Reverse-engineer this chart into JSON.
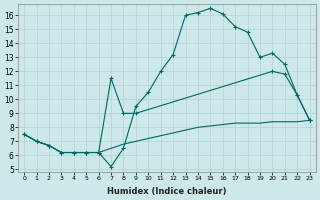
{
  "background_color": "#cce8e8",
  "grid_color": "#b5d0d0",
  "line_color": "#006666",
  "xlabel": "Humidex (Indice chaleur)",
  "xlim": [
    -0.5,
    23.5
  ],
  "ylim": [
    4.8,
    16.8
  ],
  "yticks": [
    5,
    6,
    7,
    8,
    9,
    10,
    11,
    12,
    13,
    14,
    15,
    16
  ],
  "xticks": [
    0,
    1,
    2,
    3,
    4,
    5,
    6,
    7,
    8,
    9,
    10,
    11,
    12,
    13,
    14,
    15,
    16,
    17,
    18,
    19,
    20,
    21,
    22,
    23
  ],
  "curve1_x": [
    0,
    1,
    2,
    3,
    4,
    5,
    6,
    7,
    8,
    9,
    10,
    11,
    12,
    13,
    14,
    15,
    16,
    17,
    18,
    19,
    20,
    21,
    22,
    23
  ],
  "curve1_y": [
    7.5,
    7.0,
    6.7,
    6.2,
    6.2,
    6.2,
    6.2,
    5.2,
    6.5,
    9.5,
    10.5,
    12.0,
    13.2,
    16.0,
    16.2,
    16.5,
    16.1,
    15.2,
    14.8,
    13.0,
    13.3,
    12.5,
    10.3,
    8.5
  ],
  "curve2_x": [
    0,
    1,
    2,
    3,
    4,
    5,
    6,
    7,
    8,
    9,
    20,
    21,
    22,
    23
  ],
  "curve2_y": [
    7.5,
    7.0,
    6.7,
    6.2,
    6.2,
    6.2,
    6.2,
    11.5,
    9.0,
    9.0,
    12.0,
    11.8,
    10.3,
    8.5
  ],
  "curve3_x": [
    0,
    1,
    2,
    3,
    4,
    5,
    6,
    7,
    8,
    9,
    10,
    11,
    12,
    13,
    14,
    15,
    16,
    17,
    18,
    19,
    20,
    21,
    22,
    23
  ],
  "curve3_y": [
    7.5,
    7.0,
    6.7,
    6.2,
    6.2,
    6.2,
    6.2,
    6.5,
    6.8,
    7.0,
    7.2,
    7.4,
    7.6,
    7.8,
    8.0,
    8.1,
    8.2,
    8.3,
    8.3,
    8.3,
    8.4,
    8.4,
    8.4,
    8.5
  ]
}
